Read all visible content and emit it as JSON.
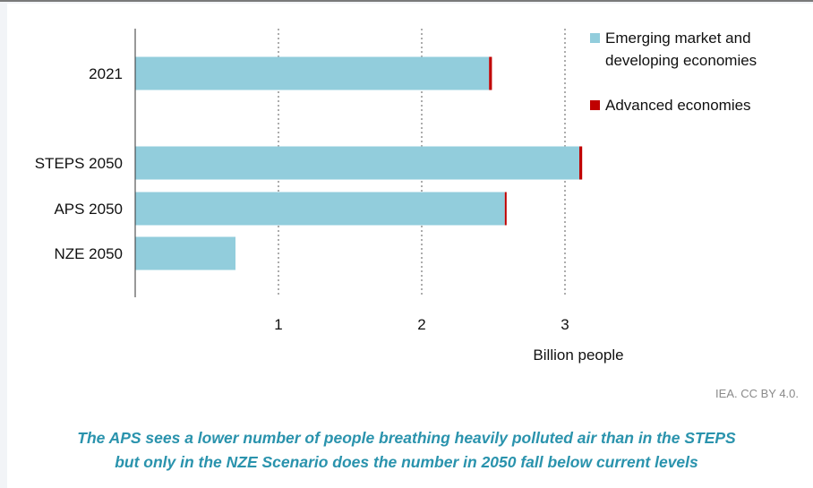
{
  "chart_data": {
    "type": "bar",
    "orientation": "horizontal",
    "stacked": true,
    "categories": [
      "2021",
      "STEPS 2050",
      "APS 2050",
      "NZE 2050"
    ],
    "series": [
      {
        "name": "Emerging market and developing economies",
        "values": [
          2.47,
          3.1,
          2.58,
          0.7
        ],
        "color": "#92cddc"
      },
      {
        "name": "Advanced economies",
        "values": [
          0.02,
          0.02,
          0.01,
          0.0
        ],
        "color": "#c00000"
      }
    ],
    "xlabel": "Billion people",
    "xticks": [
      "1",
      "2",
      "3"
    ],
    "xlim": [
      0,
      3.8
    ],
    "grid": "vertical dotted at ticks",
    "legend_position": "top-right"
  },
  "legend": {
    "emde_line1": "Emerging market and",
    "emde_line2": "developing economies",
    "adv": "Advanced economies"
  },
  "credit": "IEA. CC BY 4.0.",
  "caption": {
    "line1": "The APS sees a lower number of people breathing heavily polluted air than in the STEPS",
    "line2": "but only in the NZE Scenario does the number in 2050 fall below current levels"
  }
}
